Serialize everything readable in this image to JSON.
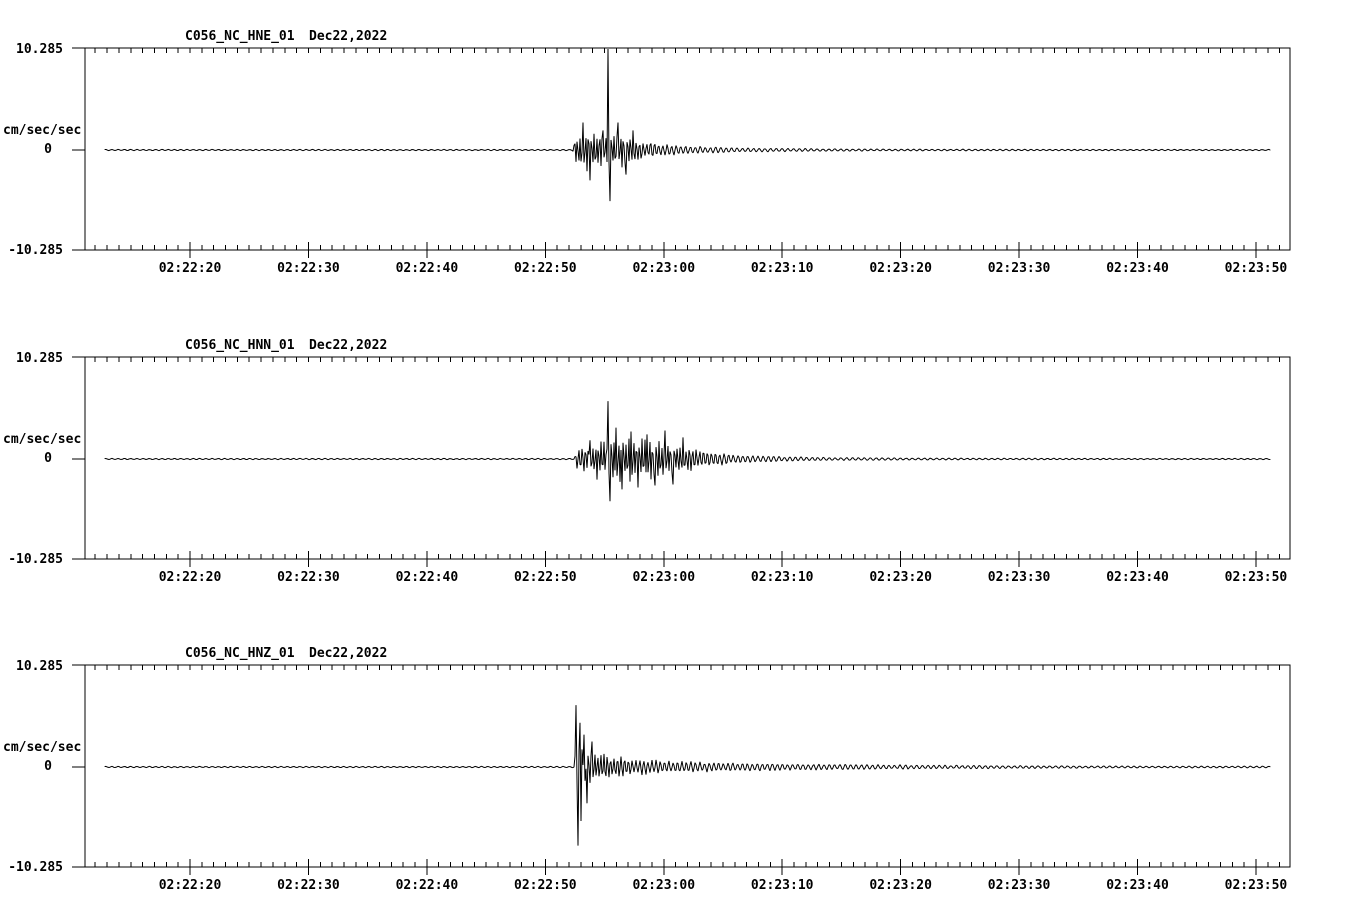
{
  "app": {
    "background_color": "#ffffff",
    "ink_color": "#000000",
    "description": "Three-channel strong-motion seismogram display, station C056 (NC network), event of Dec 22, 2022"
  },
  "time_axis": {
    "tick_labels": [
      "02:22:20",
      "02:22:30",
      "02:22:40",
      "02:22:50",
      "02:23:00",
      "02:23:10",
      "02:23:20",
      "02:23:30",
      "02:23:40",
      "02:23:50"
    ],
    "minor_tick_seconds": 1,
    "major_tick_seconds": 10,
    "axis_start": "02:22:11",
    "axis_end": "02:23:53"
  },
  "panels": [
    {
      "channel": "HNE",
      "title_station": "C056_NC_HNE_01",
      "title_date": "Dec22,2022",
      "y_axis": {
        "max_label": "10.285",
        "zero_label": "0",
        "min_label": "-10.285",
        "units_label": "cm/sec/sec"
      }
    },
    {
      "channel": "HNN",
      "title_station": "C056_NC_HNN_01",
      "title_date": "Dec22,2022",
      "y_axis": {
        "max_label": "10.285",
        "zero_label": "0",
        "min_label": "-10.285",
        "units_label": "cm/sec/sec"
      }
    },
    {
      "channel": "HNZ",
      "title_station": "C056_NC_HNZ_01",
      "title_date": "Dec22,2022",
      "y_axis": {
        "max_label": "10.285",
        "zero_label": "0",
        "min_label": "-10.285",
        "units_label": "cm/sec/sec"
      }
    }
  ],
  "chart_data": [
    {
      "type": "line",
      "title": "C056_NC_HNE_01  Dec22,2022",
      "ylabel": "cm/sec/sec",
      "ylim": [
        -10.285,
        10.285
      ],
      "y_tick_labels": [
        "10.285",
        "0",
        "-10.285"
      ],
      "x_tick_labels": [
        "02:22:20",
        "02:22:30",
        "02:22:40",
        "02:22:50",
        "02:23:00",
        "02:23:10",
        "02:23:20",
        "02:23:30",
        "02:23:40",
        "02:23:50"
      ],
      "x_start": "02:22:11",
      "x_end": "02:23:53",
      "event": {
        "onset_time": "02:22:53",
        "main_peak_time": "02:22:55",
        "peak_max_cm_s2": 10.285,
        "peak_min_cm_s2": -5.2
      },
      "envelope_units": "t = seconds after 02:22:00, amp = cm/sec/sec",
      "envelope": [
        [
          9,
          0.07
        ],
        [
          52.3,
          0.07
        ],
        [
          52.6,
          1.9
        ],
        [
          53.4,
          2.3
        ],
        [
          54.6,
          2.1
        ],
        [
          55.1,
          1.7
        ],
        [
          55.8,
          2.2
        ],
        [
          56.6,
          1.9
        ],
        [
          57.6,
          1.3
        ],
        [
          59,
          0.85
        ],
        [
          61,
          0.55
        ],
        [
          63.5,
          0.38
        ],
        [
          66,
          0.27
        ],
        [
          69,
          0.2
        ],
        [
          73,
          0.15
        ],
        [
          78,
          0.11
        ],
        [
          85,
          0.09
        ],
        [
          95,
          0.08
        ],
        [
          102,
          0.07
        ]
      ],
      "spikes": [
        [
          53.2,
          2.8
        ],
        [
          53.8,
          -3.1
        ],
        [
          54.9,
          2.0
        ],
        [
          55.28,
          10.285
        ],
        [
          55.42,
          -5.2
        ],
        [
          56.1,
          2.8
        ],
        [
          56.8,
          -2.5
        ],
        [
          57.4,
          2.0
        ]
      ],
      "noise_seed": 11
    },
    {
      "type": "line",
      "title": "C056_NC_HNN_01  Dec22,2022",
      "ylabel": "cm/sec/sec",
      "ylim": [
        -10.285,
        10.285
      ],
      "y_tick_labels": [
        "10.285",
        "0",
        "-10.285"
      ],
      "x_tick_labels": [
        "02:22:20",
        "02:22:30",
        "02:22:40",
        "02:22:50",
        "02:23:00",
        "02:23:10",
        "02:23:20",
        "02:23:30",
        "02:23:40",
        "02:23:50"
      ],
      "x_start": "02:22:11",
      "x_end": "02:23:53",
      "event": {
        "onset_time": "02:22:53",
        "main_peak_time": "02:22:55",
        "peak_max_cm_s2": 5.9,
        "peak_min_cm_s2": -4.3
      },
      "envelope_units": "t = seconds after 02:22:00, amp = cm/sec/sec",
      "envelope": [
        [
          9,
          0.07
        ],
        [
          52.4,
          0.07
        ],
        [
          52.7,
          1.1
        ],
        [
          53.6,
          1.5
        ],
        [
          54.6,
          1.8
        ],
        [
          55.5,
          2.4
        ],
        [
          56.4,
          2.7
        ],
        [
          57.6,
          2.5
        ],
        [
          58.8,
          2.3
        ],
        [
          60.2,
          2.0
        ],
        [
          61.8,
          1.4
        ],
        [
          63.5,
          0.9
        ],
        [
          65.5,
          0.55
        ],
        [
          68,
          0.35
        ],
        [
          71,
          0.25
        ],
        [
          75,
          0.17
        ],
        [
          80,
          0.12
        ],
        [
          88,
          0.09
        ],
        [
          95,
          0.08
        ],
        [
          102,
          0.07
        ]
      ],
      "spikes": [
        [
          53.8,
          1.9
        ],
        [
          54.4,
          -2.1
        ],
        [
          55.3,
          5.9
        ],
        [
          55.5,
          -4.3
        ],
        [
          55.95,
          3.2
        ],
        [
          56.5,
          -3.1
        ],
        [
          57.2,
          2.8
        ],
        [
          57.85,
          -2.9
        ],
        [
          58.6,
          2.5
        ],
        [
          59.3,
          -2.7
        ],
        [
          60.1,
          2.9
        ],
        [
          60.8,
          -2.6
        ],
        [
          61.6,
          2.2
        ]
      ],
      "noise_seed": 22
    },
    {
      "type": "line",
      "title": "C056_NC_HNZ_01  Dec22,2022",
      "ylabel": "cm/sec/sec",
      "ylim": [
        -10.285,
        10.285
      ],
      "y_tick_labels": [
        "10.285",
        "0",
        "-10.285"
      ],
      "x_tick_labels": [
        "02:22:20",
        "02:22:30",
        "02:22:40",
        "02:22:50",
        "02:23:00",
        "02:23:10",
        "02:23:20",
        "02:23:30",
        "02:23:40",
        "02:23:50"
      ],
      "x_start": "02:22:11",
      "x_end": "02:23:53",
      "event": {
        "onset_time": "02:22:53",
        "main_peak_time": "02:22:53",
        "peak_max_cm_s2": 6.3,
        "peak_min_cm_s2": -8.0
      },
      "envelope_units": "t = seconds after 02:22:00, amp = cm/sec/sec",
      "envelope": [
        [
          9,
          0.07
        ],
        [
          52.45,
          0.07
        ],
        [
          52.6,
          3.1
        ],
        [
          53.1,
          2.9
        ],
        [
          53.7,
          2.1
        ],
        [
          54.4,
          1.5
        ],
        [
          55.4,
          1.25
        ],
        [
          56.5,
          1.05
        ],
        [
          58,
          0.85
        ],
        [
          60,
          0.7
        ],
        [
          62.5,
          0.58
        ],
        [
          65,
          0.5
        ],
        [
          68,
          0.42
        ],
        [
          72,
          0.34
        ],
        [
          77,
          0.27
        ],
        [
          83,
          0.21
        ],
        [
          90,
          0.16
        ],
        [
          97,
          0.12
        ],
        [
          102,
          0.1
        ]
      ],
      "spikes": [
        [
          52.62,
          6.3
        ],
        [
          52.74,
          -8.0
        ],
        [
          52.9,
          4.5
        ],
        [
          53.05,
          -5.5
        ],
        [
          53.3,
          3.3
        ],
        [
          53.55,
          -3.7
        ],
        [
          53.9,
          2.6
        ]
      ],
      "noise_seed": 33
    }
  ]
}
